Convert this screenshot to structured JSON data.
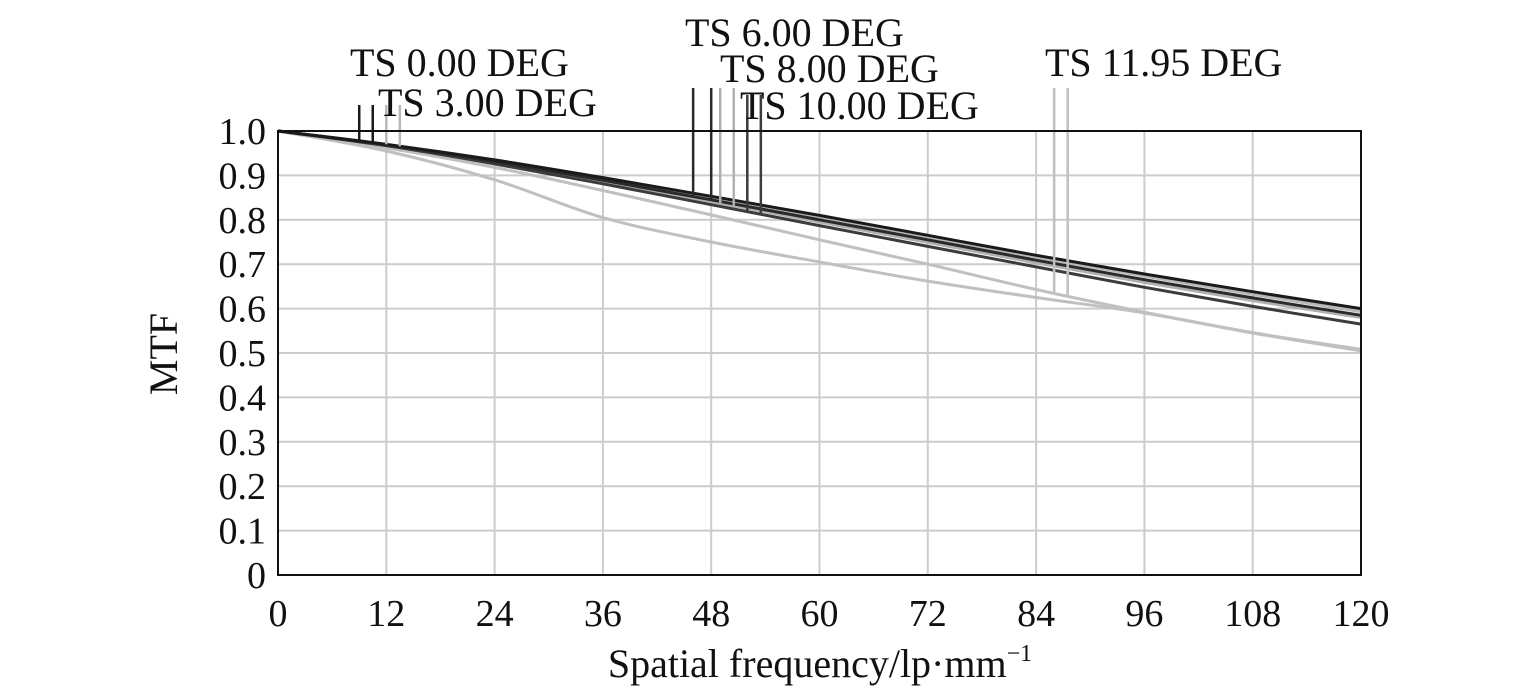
{
  "chart_data": {
    "type": "line",
    "title": "",
    "xlabel": "Spatial frequency/lp·mm",
    "xlabel_sup": "−1",
    "ylabel": "MTF",
    "xlim": [
      0,
      120
    ],
    "ylim": [
      0,
      1.0
    ],
    "grid": true,
    "x_ticks": [
      0,
      12,
      24,
      36,
      48,
      60,
      72,
      84,
      96,
      108,
      120
    ],
    "x_tick_labels": [
      "0",
      "12",
      "24",
      "36",
      "48",
      "60",
      "72",
      "84",
      "96",
      "108",
      "120"
    ],
    "y_ticks": [
      0,
      0.1,
      0.2,
      0.3,
      0.4,
      0.5,
      0.6,
      0.7,
      0.8,
      0.9,
      1.0
    ],
    "y_tick_labels": [
      "0",
      "0.1",
      "0.2",
      "0.3",
      "0.4",
      "0.5",
      "0.6",
      "0.7",
      "0.8",
      "0.9",
      "1.0"
    ],
    "x": [
      0,
      12,
      24,
      36,
      48,
      60,
      72,
      84,
      96,
      108,
      120
    ],
    "series": [
      {
        "name": "TS 0.00 DEG",
        "color": "#1a1a1a",
        "values": [
          1.0,
          0.97,
          0.935,
          0.895,
          0.853,
          0.81,
          0.765,
          0.72,
          0.678,
          0.638,
          0.6
        ],
        "marker_x": [
          9,
          10.5
        ]
      },
      {
        "name": "TS 3.00 DEG",
        "color": "#b8b8b8",
        "values": [
          1.0,
          0.97,
          0.933,
          0.892,
          0.85,
          0.806,
          0.761,
          0.716,
          0.673,
          0.632,
          0.593
        ],
        "marker_x": [
          12,
          13.5
        ]
      },
      {
        "name": "TS 6.00 DEG",
        "color": "#2a2a2a",
        "values": [
          1.0,
          0.969,
          0.931,
          0.889,
          0.845,
          0.8,
          0.755,
          0.709,
          0.665,
          0.624,
          0.585
        ],
        "marker_x": [
          46,
          48
        ]
      },
      {
        "name": "TS 8.00 DEG",
        "color": "#b0b0b0",
        "values": [
          1.0,
          0.968,
          0.929,
          0.886,
          0.841,
          0.795,
          0.749,
          0.703,
          0.659,
          0.618,
          0.58
        ],
        "marker_x": [
          49,
          50.5
        ]
      },
      {
        "name": "TS 10.00 DEG",
        "color": "#3c3c3c",
        "values": [
          1.0,
          0.967,
          0.926,
          0.881,
          0.834,
          0.787,
          0.74,
          0.694,
          0.648,
          0.605,
          0.565
        ],
        "marker_x": [
          52,
          53.5
        ]
      },
      {
        "name": "TS 11.95 DEG",
        "color": "#c0c0c0",
        "values": [
          1.0,
          0.962,
          0.918,
          0.866,
          0.811,
          0.755,
          0.7,
          0.643,
          0.592,
          0.546,
          0.508
        ],
        "marker_x": [
          86,
          87.5
        ]
      },
      {
        "name": "",
        "color": "#c0c0c0",
        "values": [
          1.0,
          0.955,
          0.89,
          0.805,
          0.75,
          0.705,
          0.662,
          0.625,
          0.59,
          0.545,
          0.505
        ]
      }
    ],
    "series_labels": [
      {
        "text": "TS 0.00 DEG"
      },
      {
        "text": "TS 3.00 DEG"
      },
      {
        "text": "TS 6.00 DEG"
      },
      {
        "text": "TS 8.00 DEG"
      },
      {
        "text": "TS 10.00 DEG"
      },
      {
        "text": "TS 11.95 DEG"
      }
    ]
  }
}
